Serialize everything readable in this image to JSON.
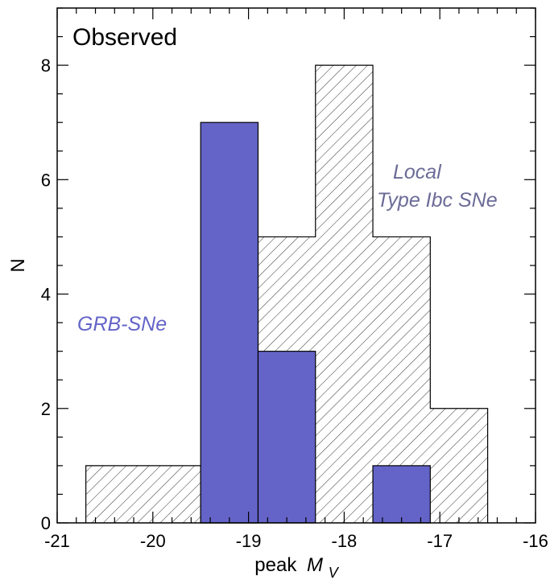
{
  "chart_data": {
    "type": "bar",
    "title": "Observed",
    "xlabel": "peak",
    "xlabel_symbol": "M",
    "xlabel_subscript": "V",
    "ylabel": "N",
    "xlim": [
      -21,
      -16
    ],
    "ylim": [
      0,
      9
    ],
    "x_ticks": [
      -21,
      -20,
      -19,
      -18,
      -17,
      -16
    ],
    "x_tick_labels": [
      "-21",
      "-20",
      "-19",
      "-18",
      "-17",
      "-16"
    ],
    "y_ticks": [
      0,
      2,
      4,
      6,
      8
    ],
    "y_tick_labels": [
      "0",
      "2",
      "4",
      "6",
      "8"
    ],
    "series": [
      {
        "name": "Local Type Ibc SNe",
        "style": "hatched",
        "bins": [
          {
            "x0": -20.7,
            "x1": -19.5,
            "count": 1
          },
          {
            "x0": -19.5,
            "x1": -18.9,
            "count": 0
          },
          {
            "x0": -18.9,
            "x1": -18.3,
            "count": 5
          },
          {
            "x0": -18.3,
            "x1": -17.7,
            "count": 8
          },
          {
            "x0": -17.7,
            "x1": -17.1,
            "count": 5
          },
          {
            "x0": -17.1,
            "x1": -16.5,
            "count": 2
          }
        ]
      },
      {
        "name": "GRB-SNe",
        "style": "filled",
        "bins": [
          {
            "x0": -19.5,
            "x1": -18.9,
            "count": 7
          },
          {
            "x0": -18.9,
            "x1": -18.3,
            "count": 3
          },
          {
            "x0": -17.7,
            "x1": -17.1,
            "count": 1
          }
        ]
      }
    ],
    "annotations": [
      {
        "text": "GRB-SNe"
      },
      {
        "text": "Local"
      },
      {
        "text": "Type Ibc SNe"
      }
    ],
    "colors": {
      "grb_fill": "#6464c8",
      "hatch": "#333333",
      "grb_label": "#6464c8",
      "local_label": "#6b6b98"
    },
    "grid": false,
    "legend": "none"
  }
}
